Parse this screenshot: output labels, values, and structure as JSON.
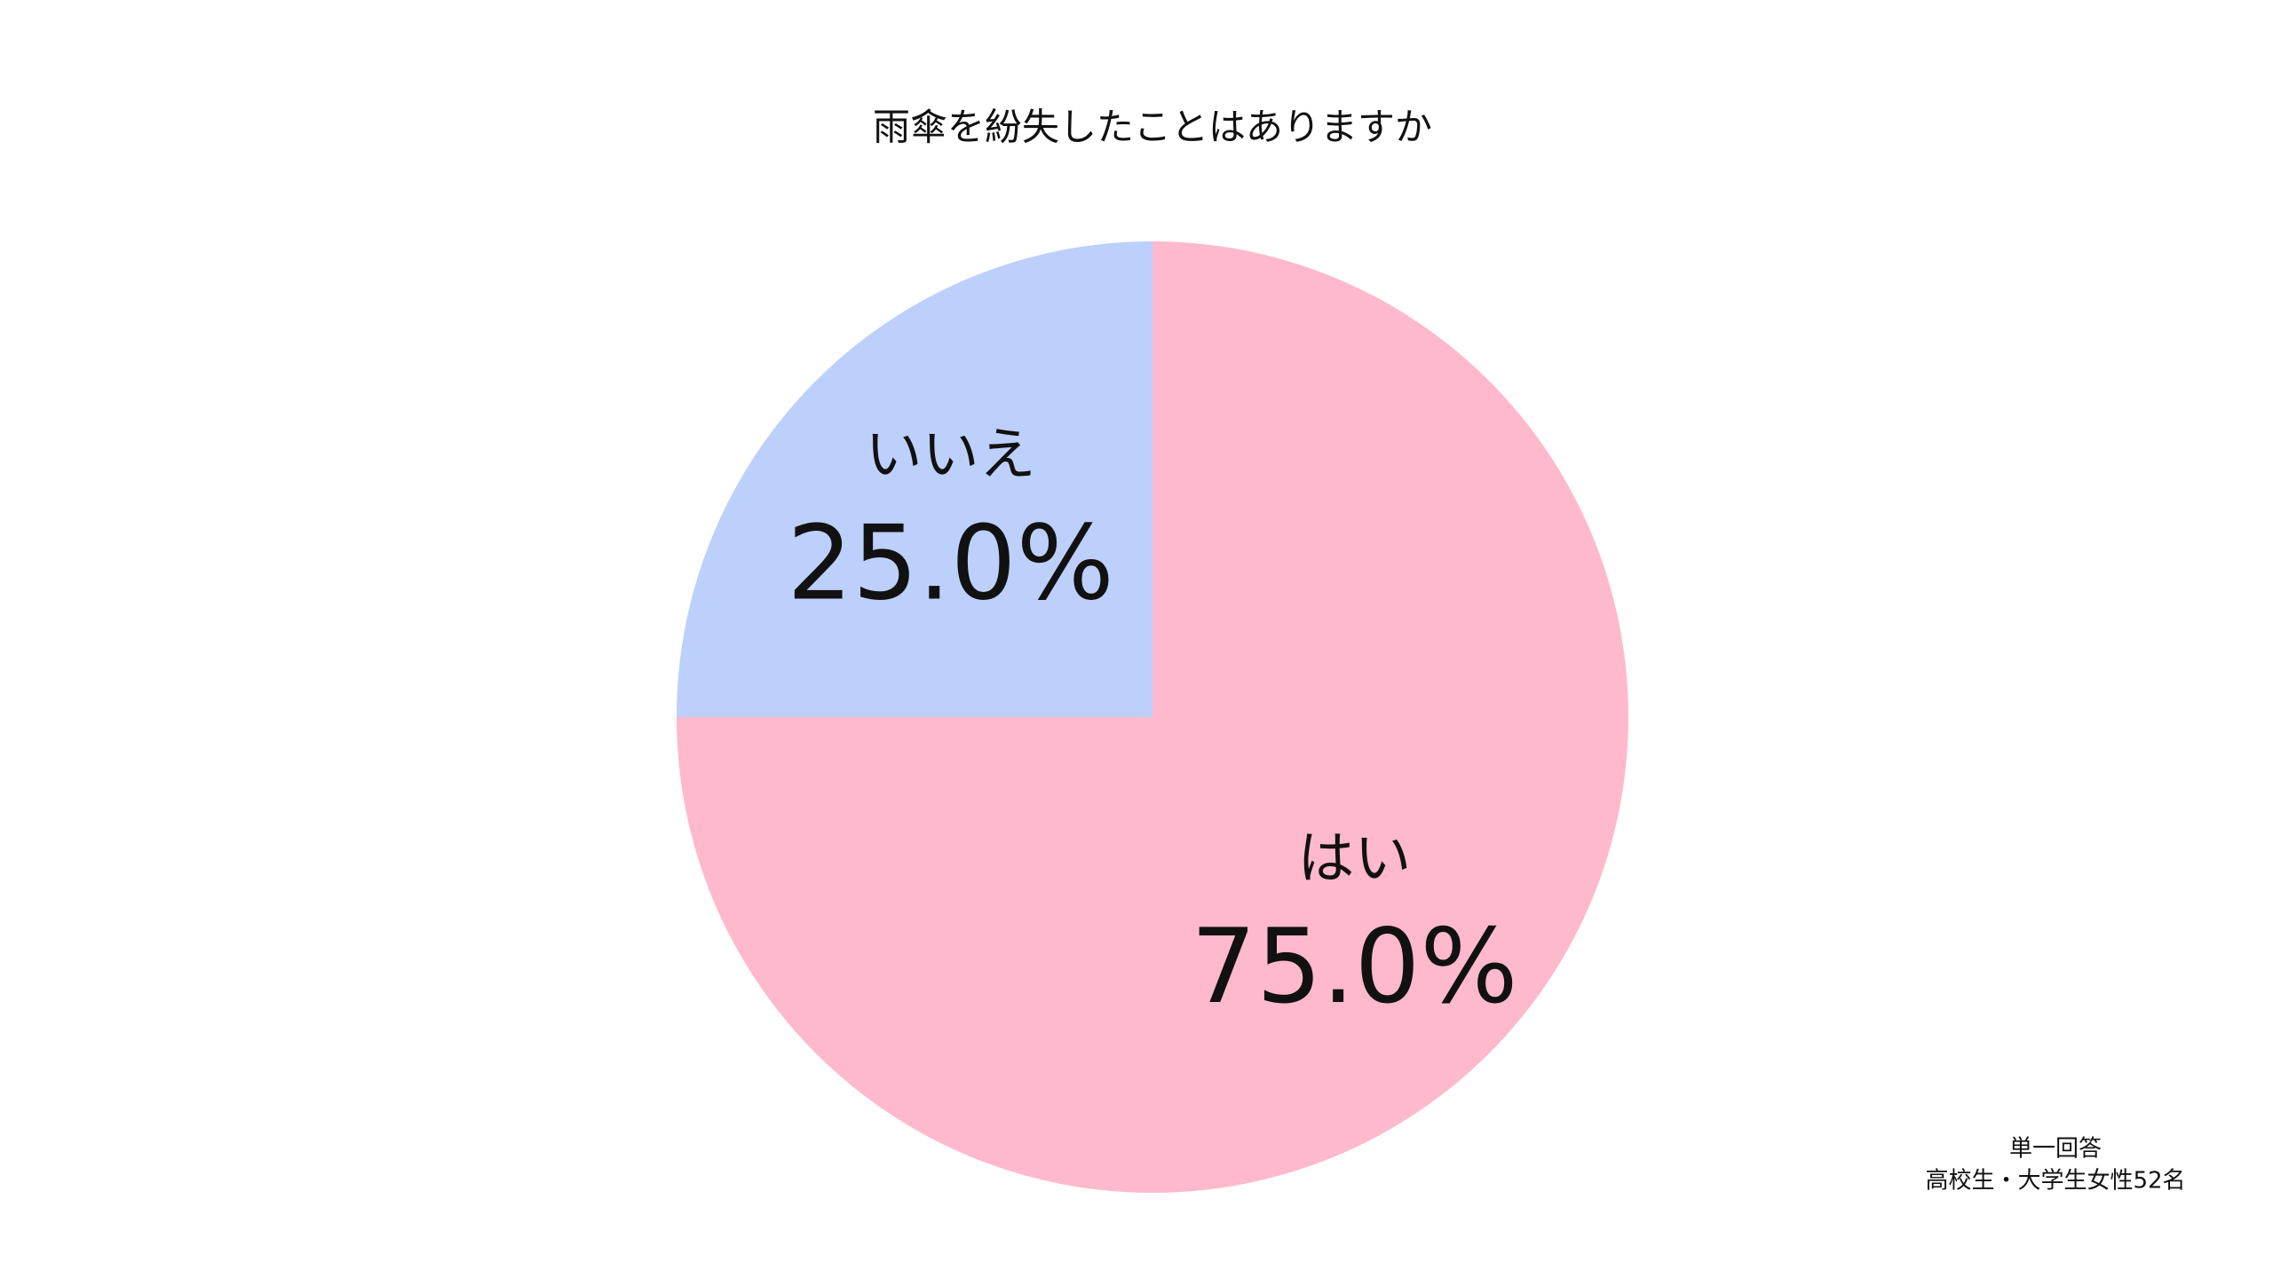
{
  "chart_data": {
    "type": "pie",
    "title": "雨傘を紛失したことはありますか",
    "categories": [
      "はい",
      "いいえ"
    ],
    "values": [
      75.0,
      25.0
    ],
    "value_labels": [
      "75.0%",
      "25.0%"
    ],
    "colors": [
      "#ffb9cc",
      "#bdd0fb"
    ],
    "note": [
      "単一回答",
      "高校生・大学生女性52名"
    ]
  }
}
